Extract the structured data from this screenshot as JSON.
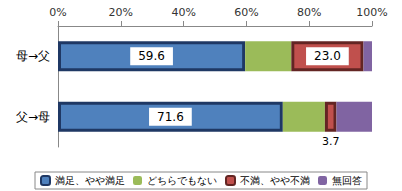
{
  "chart_data": {
    "type": "bar",
    "orientation": "horizontal",
    "stacked": true,
    "grid": false,
    "legend": "bottom",
    "categories": [
      "母→父",
      "父→母"
    ],
    "xlim": [
      0,
      100
    ],
    "xticks": [
      {
        "value": 0,
        "label": "0%"
      },
      {
        "value": 20,
        "label": "20%"
      },
      {
        "value": 40,
        "label": "40%"
      },
      {
        "value": 60,
        "label": "60%"
      },
      {
        "value": 80,
        "label": "80%"
      },
      {
        "value": 100,
        "label": "100%"
      }
    ],
    "series": [
      {
        "name": "満足、やや満足",
        "color": "#4f81bd",
        "values": [
          59.6,
          71.6
        ],
        "data_labels": true
      },
      {
        "name": "どちらでもない",
        "color": "#9bbb59",
        "values": [
          14.7,
          13.4
        ],
        "data_labels": false
      },
      {
        "name": "不満、やや不満",
        "color": "#c0504d",
        "values": [
          23.0,
          3.7
        ],
        "value_labels": [
          "23.0",
          "3.7"
        ],
        "data_labels": true
      },
      {
        "name": "無回答",
        "color": "#8064a2",
        "values": [
          2.7,
          11.3
        ],
        "data_labels": false
      }
    ]
  }
}
